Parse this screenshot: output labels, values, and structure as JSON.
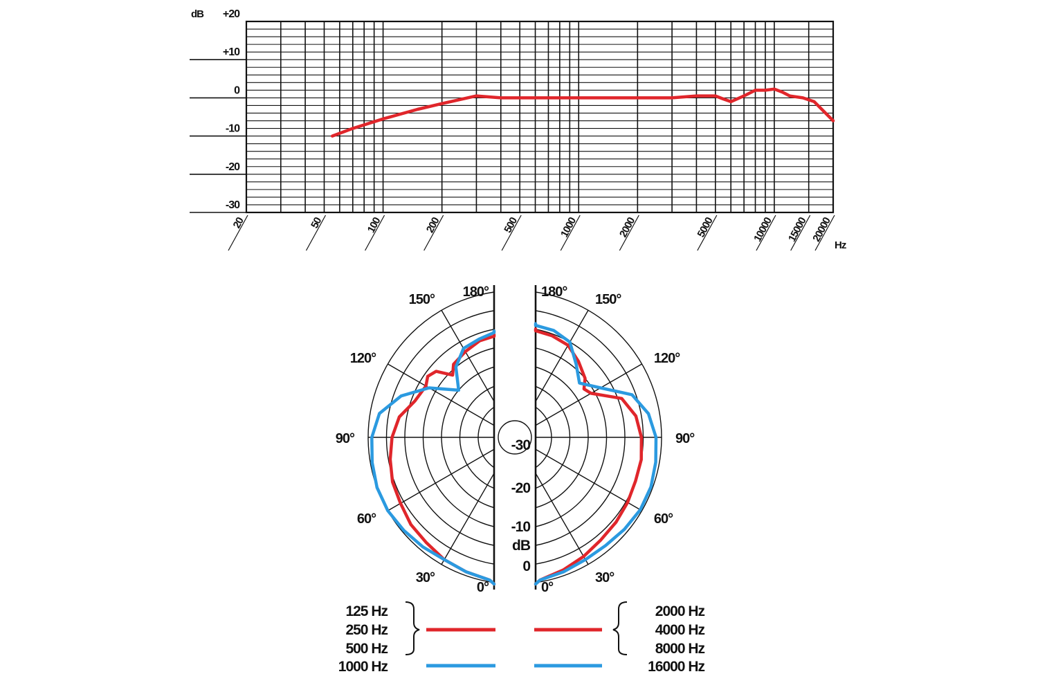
{
  "chart_data": [
    {
      "type": "line",
      "ylabel": "dB",
      "xlabel": "Hz",
      "x_scale": "log",
      "xlim": [
        20,
        20000
      ],
      "ylim": [
        -30,
        20
      ],
      "y_ticks": [
        "+20",
        "+10",
        "0",
        "-10",
        "-20",
        "-30"
      ],
      "x_ticks": [
        "20",
        "50",
        "100",
        "200",
        "500",
        "1000",
        "2000",
        "5000",
        "10000",
        "15000",
        "20000"
      ],
      "grid": true,
      "series": [
        {
          "color": "#e0262b",
          "x": [
            55,
            70,
            100,
            150,
            200,
            300,
            400,
            1000,
            2000,
            3000,
            4000,
            5000,
            5500,
            6000,
            7000,
            8000,
            9000,
            10000,
            11000,
            12000,
            14000,
            16000,
            20000
          ],
          "y": [
            -10,
            -8,
            -5.5,
            -3,
            -1.5,
            0.5,
            0,
            0,
            0,
            0,
            0.5,
            0.5,
            -0.3,
            -1,
            0.5,
            2,
            2,
            2.3,
            1.5,
            0.5,
            0,
            -1,
            -6
          ]
        }
      ]
    },
    {
      "type": "polar",
      "angle_labels": {
        "left": [
          "180°",
          "150°",
          "120°",
          "90°",
          "60°",
          "30°",
          "0°"
        ],
        "right": [
          "180°",
          "150°",
          "120°",
          "90°",
          "60°",
          "30°",
          "0°"
        ]
      },
      "angle_values": [
        180,
        150,
        120,
        90,
        60,
        30,
        0
      ],
      "radial_labels": [
        "-30",
        "-20",
        "-10",
        "dB",
        "0"
      ],
      "rlim_db": [
        -30,
        0
      ],
      "legend": {
        "left_labels": [
          "125 Hz",
          "250 Hz",
          "500 Hz",
          "1000 Hz"
        ],
        "right_labels": [
          "2000 Hz",
          "4000 Hz",
          "8000 Hz",
          "16000 Hz"
        ]
      },
      "series": [
        {
          "side": "left",
          "color": "#e0262b",
          "angles": [
            0,
            10,
            20,
            30,
            40,
            50,
            60,
            70,
            80,
            90,
            100,
            110,
            120,
            125,
            130,
            135,
            140,
            150,
            160,
            170,
            180
          ],
          "db": [
            0,
            -0.5,
            -1,
            -1.5,
            -2.5,
            -3,
            -4,
            -4.5,
            -5.5,
            -6.5,
            -8,
            -11,
            -12,
            -11,
            -12,
            -16,
            -14,
            -13,
            -12,
            -12,
            -12
          ]
        },
        {
          "side": "left",
          "color": "#2b9ae0",
          "angles": [
            0,
            10,
            20,
            30,
            40,
            50,
            60,
            70,
            80,
            90,
            100,
            110,
            120,
            130,
            140,
            150,
            160,
            170,
            180
          ],
          "db": [
            0,
            -0.5,
            -1,
            -1.5,
            -1,
            -0.5,
            0,
            0,
            -0.5,
            -1,
            -2.5,
            -7,
            -13,
            -20,
            -15,
            -12,
            -11.5,
            -11,
            -11
          ]
        },
        {
          "side": "right",
          "color": "#e0262b",
          "angles": [
            0,
            10,
            20,
            30,
            40,
            50,
            60,
            70,
            80,
            90,
            100,
            110,
            120,
            125,
            130,
            140,
            150,
            160,
            170,
            180
          ],
          "db": [
            0,
            -0.5,
            -1.5,
            -2.5,
            -3.5,
            -4,
            -4.5,
            -5,
            -5,
            -5.5,
            -6.5,
            -9,
            -16,
            -17,
            -15,
            -13,
            -11,
            -10.5,
            -10.5,
            -10.5
          ]
        },
        {
          "side": "right",
          "color": "#2b9ae0",
          "angles": [
            0,
            10,
            20,
            30,
            40,
            50,
            60,
            70,
            80,
            90,
            100,
            110,
            120,
            130,
            140,
            150,
            160,
            170,
            180
          ],
          "db": [
            0,
            -0.5,
            -1,
            -1.5,
            -1.5,
            -1,
            -0.5,
            -0.5,
            -1,
            -1.5,
            -3,
            -6,
            -13,
            -17,
            -14,
            -10,
            -9,
            -9,
            -9
          ]
        }
      ]
    }
  ]
}
